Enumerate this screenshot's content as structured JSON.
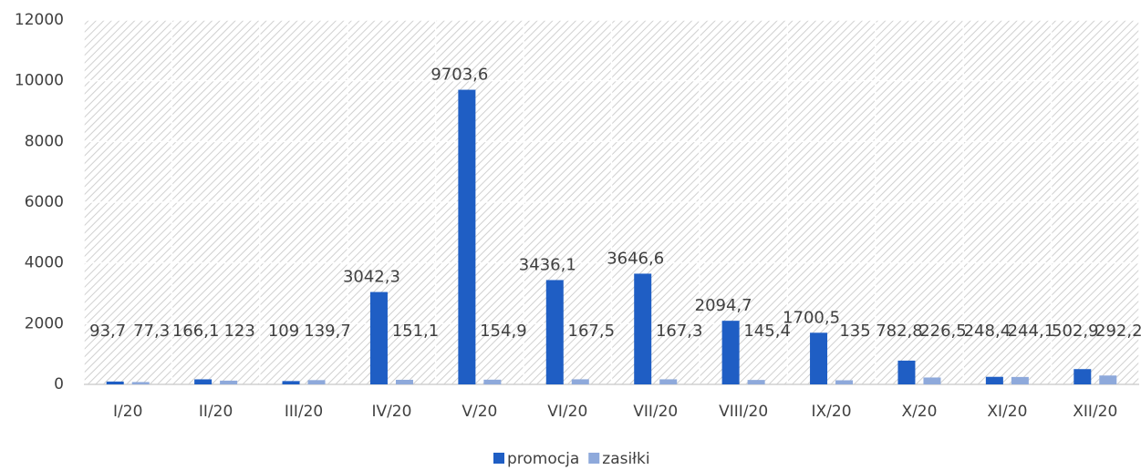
{
  "chart_data": {
    "type": "bar",
    "categories": [
      "I/20",
      "II/20",
      "III/20",
      "IV/20",
      "V/20",
      "VI/20",
      "VII/20",
      "VIII/20",
      "IX/20",
      "X/20",
      "XI/20",
      "XII/20"
    ],
    "series": [
      {
        "name": "promocja",
        "color": "#1f5ec4",
        "values": [
          93.7,
          166.1,
          109,
          3042.3,
          9703.6,
          3436.1,
          3646.6,
          2094.7,
          1700.5,
          782.8,
          248.4,
          502.9
        ],
        "value_labels": [
          "93,7",
          "166,1",
          "109",
          "3042,3",
          "9703,6",
          "3436,1",
          "3646,6",
          "2094,7",
          "1700,5",
          "782,8",
          "248,4",
          "502,9"
        ]
      },
      {
        "name": "zasiłki",
        "color": "#8ea9db",
        "values": [
          77.3,
          123,
          139.7,
          151.1,
          154.9,
          167.5,
          167.3,
          145.4,
          135,
          226.5,
          244.1,
          292.2
        ],
        "value_labels": [
          "77,3",
          "123",
          "139,7",
          "151,1",
          "154,9",
          "167,5",
          "167,3",
          "145,4",
          "135",
          "226,5",
          "244,1",
          "292,2"
        ]
      }
    ],
    "ylim": [
      0,
      12000
    ],
    "yticks": [
      0,
      2000,
      4000,
      6000,
      8000,
      10000,
      12000
    ],
    "grid": true,
    "legend": "bottom"
  }
}
